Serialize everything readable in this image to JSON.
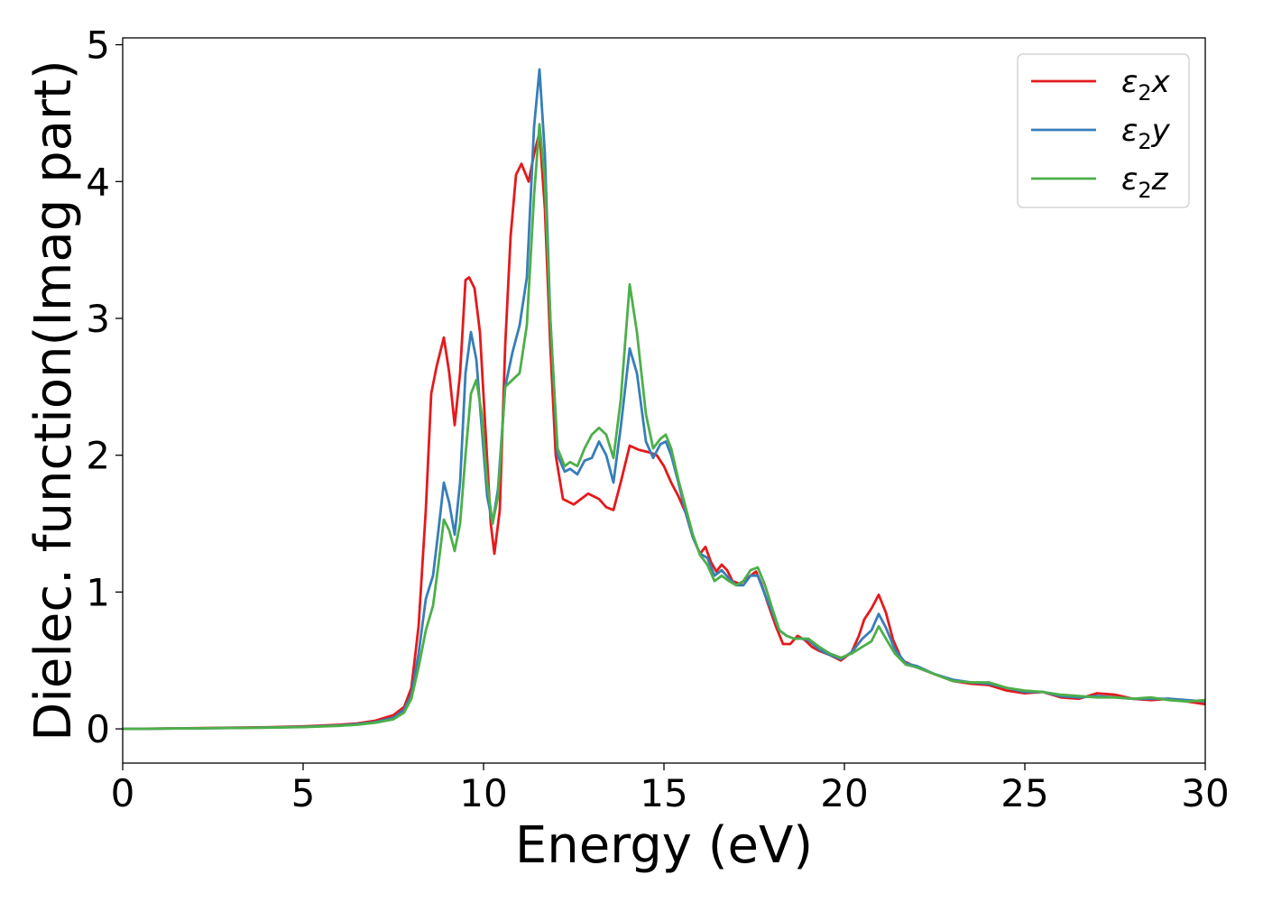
{
  "chart_data": {
    "type": "line",
    "xlabel": "Energy (eV)",
    "ylabel": "Dielec. function(Imag part)",
    "xlim": [
      0,
      30
    ],
    "ylim": [
      -0.25,
      5.05
    ],
    "xticks": [
      0,
      5,
      10,
      15,
      20,
      25,
      30
    ],
    "yticks": [
      0,
      1,
      2,
      3,
      4,
      5
    ],
    "grid": false,
    "legend_position": "top-right",
    "series": [
      {
        "name": "ε₂x",
        "legend_base": "ε",
        "legend_sub": "2",
        "legend_suffix": "x",
        "color": "#e41a1c",
        "points": [
          [
            0,
            0.0
          ],
          [
            2,
            0.005
          ],
          [
            4,
            0.012
          ],
          [
            5,
            0.018
          ],
          [
            6,
            0.03
          ],
          [
            6.5,
            0.04
          ],
          [
            7,
            0.06
          ],
          [
            7.5,
            0.1
          ],
          [
            7.8,
            0.16
          ],
          [
            8.0,
            0.3
          ],
          [
            8.2,
            0.75
          ],
          [
            8.4,
            1.6
          ],
          [
            8.55,
            2.45
          ],
          [
            8.7,
            2.65
          ],
          [
            8.9,
            2.86
          ],
          [
            9.05,
            2.6
          ],
          [
            9.2,
            2.22
          ],
          [
            9.35,
            2.6
          ],
          [
            9.5,
            3.28
          ],
          [
            9.6,
            3.3
          ],
          [
            9.75,
            3.22
          ],
          [
            9.9,
            2.9
          ],
          [
            10.05,
            2.2
          ],
          [
            10.2,
            1.5
          ],
          [
            10.3,
            1.28
          ],
          [
            10.45,
            1.6
          ],
          [
            10.6,
            2.8
          ],
          [
            10.75,
            3.6
          ],
          [
            10.9,
            4.05
          ],
          [
            11.05,
            4.13
          ],
          [
            11.25,
            4.0
          ],
          [
            11.4,
            4.2
          ],
          [
            11.55,
            4.36
          ],
          [
            11.7,
            3.8
          ],
          [
            11.85,
            2.8
          ],
          [
            12.0,
            2.0
          ],
          [
            12.2,
            1.68
          ],
          [
            12.5,
            1.64
          ],
          [
            12.7,
            1.68
          ],
          [
            12.9,
            1.72
          ],
          [
            13.2,
            1.68
          ],
          [
            13.4,
            1.62
          ],
          [
            13.6,
            1.6
          ],
          [
            13.8,
            1.8
          ],
          [
            14.05,
            2.07
          ],
          [
            14.3,
            2.04
          ],
          [
            14.6,
            2.02
          ],
          [
            14.8,
            2.0
          ],
          [
            15.0,
            1.92
          ],
          [
            15.2,
            1.8
          ],
          [
            15.4,
            1.7
          ],
          [
            15.6,
            1.58
          ],
          [
            15.8,
            1.4
          ],
          [
            16.0,
            1.28
          ],
          [
            16.15,
            1.33
          ],
          [
            16.3,
            1.22
          ],
          [
            16.45,
            1.15
          ],
          [
            16.6,
            1.2
          ],
          [
            16.75,
            1.16
          ],
          [
            16.9,
            1.08
          ],
          [
            17.1,
            1.06
          ],
          [
            17.3,
            1.1
          ],
          [
            17.55,
            1.15
          ],
          [
            17.7,
            1.06
          ],
          [
            17.9,
            0.9
          ],
          [
            18.1,
            0.75
          ],
          [
            18.3,
            0.62
          ],
          [
            18.5,
            0.62
          ],
          [
            18.7,
            0.68
          ],
          [
            18.9,
            0.65
          ],
          [
            19.1,
            0.6
          ],
          [
            19.3,
            0.57
          ],
          [
            19.6,
            0.54
          ],
          [
            19.9,
            0.5
          ],
          [
            20.2,
            0.56
          ],
          [
            20.4,
            0.68
          ],
          [
            20.55,
            0.8
          ],
          [
            20.75,
            0.88
          ],
          [
            20.95,
            0.98
          ],
          [
            21.15,
            0.85
          ],
          [
            21.35,
            0.65
          ],
          [
            21.6,
            0.5
          ],
          [
            22.0,
            0.45
          ],
          [
            22.5,
            0.4
          ],
          [
            23.0,
            0.35
          ],
          [
            23.5,
            0.33
          ],
          [
            24.0,
            0.32
          ],
          [
            24.5,
            0.28
          ],
          [
            25.0,
            0.26
          ],
          [
            25.5,
            0.27
          ],
          [
            26.0,
            0.23
          ],
          [
            26.5,
            0.22
          ],
          [
            27.0,
            0.26
          ],
          [
            27.5,
            0.25
          ],
          [
            28.0,
            0.22
          ],
          [
            28.5,
            0.21
          ],
          [
            29.0,
            0.22
          ],
          [
            29.5,
            0.2
          ],
          [
            30.0,
            0.18
          ]
        ]
      },
      {
        "name": "ε₂y",
        "legend_base": "ε",
        "legend_sub": "2",
        "legend_suffix": "y",
        "color": "#377eb8",
        "points": [
          [
            0,
            0.0
          ],
          [
            2,
            0.004
          ],
          [
            4,
            0.01
          ],
          [
            5,
            0.015
          ],
          [
            6,
            0.025
          ],
          [
            6.5,
            0.035
          ],
          [
            7,
            0.05
          ],
          [
            7.5,
            0.08
          ],
          [
            7.8,
            0.14
          ],
          [
            8.0,
            0.25
          ],
          [
            8.2,
            0.55
          ],
          [
            8.4,
            0.95
          ],
          [
            8.6,
            1.12
          ],
          [
            8.75,
            1.45
          ],
          [
            8.9,
            1.8
          ],
          [
            9.05,
            1.65
          ],
          [
            9.2,
            1.42
          ],
          [
            9.35,
            1.8
          ],
          [
            9.5,
            2.6
          ],
          [
            9.65,
            2.9
          ],
          [
            9.8,
            2.7
          ],
          [
            9.95,
            2.2
          ],
          [
            10.1,
            1.7
          ],
          [
            10.25,
            1.5
          ],
          [
            10.4,
            1.75
          ],
          [
            10.6,
            2.5
          ],
          [
            10.8,
            2.75
          ],
          [
            11.0,
            2.95
          ],
          [
            11.2,
            3.3
          ],
          [
            11.4,
            4.4
          ],
          [
            11.55,
            4.82
          ],
          [
            11.7,
            4.2
          ],
          [
            11.85,
            3.0
          ],
          [
            12.05,
            2.0
          ],
          [
            12.25,
            1.88
          ],
          [
            12.4,
            1.9
          ],
          [
            12.6,
            1.86
          ],
          [
            12.8,
            1.96
          ],
          [
            13.0,
            1.98
          ],
          [
            13.2,
            2.1
          ],
          [
            13.4,
            2.0
          ],
          [
            13.6,
            1.8
          ],
          [
            13.8,
            2.2
          ],
          [
            14.05,
            2.78
          ],
          [
            14.25,
            2.6
          ],
          [
            14.5,
            2.1
          ],
          [
            14.7,
            1.98
          ],
          [
            14.9,
            2.08
          ],
          [
            15.05,
            2.1
          ],
          [
            15.2,
            2.0
          ],
          [
            15.4,
            1.8
          ],
          [
            15.6,
            1.58
          ],
          [
            15.8,
            1.4
          ],
          [
            16.0,
            1.28
          ],
          [
            16.2,
            1.25
          ],
          [
            16.4,
            1.12
          ],
          [
            16.6,
            1.16
          ],
          [
            16.8,
            1.1
          ],
          [
            17.0,
            1.05
          ],
          [
            17.2,
            1.05
          ],
          [
            17.4,
            1.12
          ],
          [
            17.6,
            1.12
          ],
          [
            17.8,
            0.98
          ],
          [
            18.0,
            0.85
          ],
          [
            18.2,
            0.72
          ],
          [
            18.4,
            0.68
          ],
          [
            18.6,
            0.66
          ],
          [
            18.8,
            0.66
          ],
          [
            19.0,
            0.65
          ],
          [
            19.3,
            0.58
          ],
          [
            19.6,
            0.54
          ],
          [
            19.9,
            0.51
          ],
          [
            20.2,
            0.56
          ],
          [
            20.5,
            0.66
          ],
          [
            20.75,
            0.72
          ],
          [
            20.95,
            0.84
          ],
          [
            21.15,
            0.74
          ],
          [
            21.4,
            0.58
          ],
          [
            21.7,
            0.48
          ],
          [
            22.0,
            0.46
          ],
          [
            22.5,
            0.4
          ],
          [
            23.0,
            0.36
          ],
          [
            23.5,
            0.34
          ],
          [
            24.0,
            0.33
          ],
          [
            24.5,
            0.3
          ],
          [
            25.0,
            0.27
          ],
          [
            25.5,
            0.27
          ],
          [
            26.0,
            0.24
          ],
          [
            26.5,
            0.23
          ],
          [
            27.0,
            0.24
          ],
          [
            27.5,
            0.23
          ],
          [
            28.0,
            0.22
          ],
          [
            28.5,
            0.22
          ],
          [
            29.0,
            0.22
          ],
          [
            29.5,
            0.21
          ],
          [
            30.0,
            0.2
          ]
        ]
      },
      {
        "name": "ε₂z",
        "legend_base": "ε",
        "legend_sub": "2",
        "legend_suffix": "z",
        "color": "#4daf4a",
        "points": [
          [
            0,
            0.0
          ],
          [
            2,
            0.004
          ],
          [
            4,
            0.009
          ],
          [
            5,
            0.013
          ],
          [
            6,
            0.022
          ],
          [
            6.5,
            0.03
          ],
          [
            7,
            0.045
          ],
          [
            7.5,
            0.07
          ],
          [
            7.8,
            0.12
          ],
          [
            8.0,
            0.22
          ],
          [
            8.2,
            0.45
          ],
          [
            8.4,
            0.72
          ],
          [
            8.6,
            0.9
          ],
          [
            8.75,
            1.2
          ],
          [
            8.9,
            1.53
          ],
          [
            9.05,
            1.45
          ],
          [
            9.2,
            1.3
          ],
          [
            9.35,
            1.5
          ],
          [
            9.5,
            2.0
          ],
          [
            9.65,
            2.45
          ],
          [
            9.8,
            2.55
          ],
          [
            9.95,
            2.3
          ],
          [
            10.1,
            1.8
          ],
          [
            10.25,
            1.5
          ],
          [
            10.4,
            1.7
          ],
          [
            10.6,
            2.5
          ],
          [
            10.8,
            2.55
          ],
          [
            11.0,
            2.6
          ],
          [
            11.2,
            2.95
          ],
          [
            11.4,
            3.9
          ],
          [
            11.55,
            4.42
          ],
          [
            11.7,
            4.0
          ],
          [
            11.85,
            3.0
          ],
          [
            12.05,
            2.05
          ],
          [
            12.25,
            1.92
          ],
          [
            12.4,
            1.95
          ],
          [
            12.6,
            1.92
          ],
          [
            12.8,
            2.05
          ],
          [
            13.0,
            2.15
          ],
          [
            13.2,
            2.2
          ],
          [
            13.4,
            2.15
          ],
          [
            13.6,
            1.98
          ],
          [
            13.8,
            2.4
          ],
          [
            14.05,
            3.25
          ],
          [
            14.25,
            2.9
          ],
          [
            14.5,
            2.3
          ],
          [
            14.7,
            2.05
          ],
          [
            14.9,
            2.12
          ],
          [
            15.05,
            2.15
          ],
          [
            15.2,
            2.05
          ],
          [
            15.4,
            1.82
          ],
          [
            15.6,
            1.62
          ],
          [
            15.8,
            1.42
          ],
          [
            16.0,
            1.27
          ],
          [
            16.2,
            1.2
          ],
          [
            16.4,
            1.08
          ],
          [
            16.6,
            1.12
          ],
          [
            16.8,
            1.08
          ],
          [
            17.0,
            1.05
          ],
          [
            17.2,
            1.08
          ],
          [
            17.4,
            1.16
          ],
          [
            17.6,
            1.18
          ],
          [
            17.8,
            1.05
          ],
          [
            18.0,
            0.88
          ],
          [
            18.2,
            0.72
          ],
          [
            18.4,
            0.68
          ],
          [
            18.6,
            0.66
          ],
          [
            18.8,
            0.66
          ],
          [
            19.0,
            0.66
          ],
          [
            19.3,
            0.6
          ],
          [
            19.6,
            0.55
          ],
          [
            19.9,
            0.52
          ],
          [
            20.2,
            0.55
          ],
          [
            20.5,
            0.6
          ],
          [
            20.75,
            0.64
          ],
          [
            20.95,
            0.75
          ],
          [
            21.15,
            0.66
          ],
          [
            21.4,
            0.55
          ],
          [
            21.7,
            0.47
          ],
          [
            22.0,
            0.45
          ],
          [
            22.5,
            0.4
          ],
          [
            23.0,
            0.35
          ],
          [
            23.5,
            0.34
          ],
          [
            24.0,
            0.34
          ],
          [
            24.5,
            0.3
          ],
          [
            25.0,
            0.28
          ],
          [
            25.5,
            0.27
          ],
          [
            26.0,
            0.25
          ],
          [
            26.5,
            0.24
          ],
          [
            27.0,
            0.23
          ],
          [
            27.5,
            0.23
          ],
          [
            28.0,
            0.22
          ],
          [
            28.5,
            0.23
          ],
          [
            29.0,
            0.21
          ],
          [
            29.5,
            0.2
          ],
          [
            30.0,
            0.21
          ]
        ]
      }
    ]
  }
}
